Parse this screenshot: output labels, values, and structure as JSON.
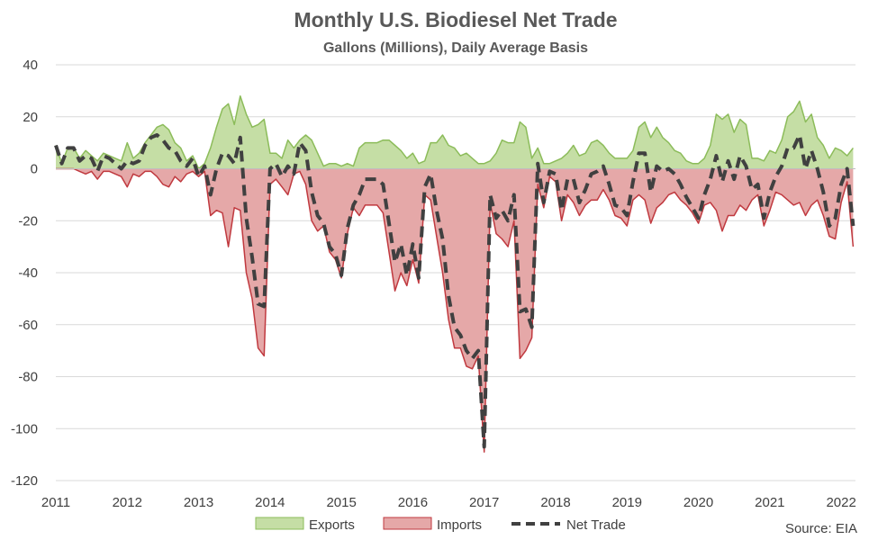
{
  "chart_data": {
    "type": "area",
    "title": "Monthly U.S. Biodiesel Net Trade",
    "subtitle": "Gallons (Millions), Daily Average Basis",
    "source": "Source: EIA",
    "ylim": [
      -120,
      40
    ],
    "yticks": [
      40,
      20,
      0,
      -20,
      -40,
      -60,
      -80,
      -100,
      -120
    ],
    "xticks": [
      2011,
      2012,
      2013,
      2014,
      2015,
      2016,
      2017,
      2018,
      2019,
      2020,
      2021,
      2022
    ],
    "xlim": [
      2011.0,
      2022.2
    ],
    "grid": true,
    "legend_position": "bottom",
    "x": [
      2011.0,
      2011.083,
      2011.167,
      2011.25,
      2011.333,
      2011.417,
      2011.5,
      2011.583,
      2011.667,
      2011.75,
      2011.833,
      2011.917,
      2012.0,
      2012.083,
      2012.167,
      2012.25,
      2012.333,
      2012.417,
      2012.5,
      2012.583,
      2012.667,
      2012.75,
      2012.833,
      2012.917,
      2013.0,
      2013.083,
      2013.167,
      2013.25,
      2013.333,
      2013.417,
      2013.5,
      2013.583,
      2013.667,
      2013.75,
      2013.833,
      2013.917,
      2014.0,
      2014.083,
      2014.167,
      2014.25,
      2014.333,
      2014.417,
      2014.5,
      2014.583,
      2014.667,
      2014.75,
      2014.833,
      2014.917,
      2015.0,
      2015.083,
      2015.167,
      2015.25,
      2015.333,
      2015.417,
      2015.5,
      2015.583,
      2015.667,
      2015.75,
      2015.833,
      2015.917,
      2016.0,
      2016.083,
      2016.167,
      2016.25,
      2016.333,
      2016.417,
      2016.5,
      2016.583,
      2016.667,
      2016.75,
      2016.833,
      2016.917,
      2017.0,
      2017.083,
      2017.167,
      2017.25,
      2017.333,
      2017.417,
      2017.5,
      2017.583,
      2017.667,
      2017.75,
      2017.833,
      2017.917,
      2018.0,
      2018.083,
      2018.167,
      2018.25,
      2018.333,
      2018.417,
      2018.5,
      2018.583,
      2018.667,
      2018.75,
      2018.833,
      2018.917,
      2019.0,
      2019.083,
      2019.167,
      2019.25,
      2019.333,
      2019.417,
      2019.5,
      2019.583,
      2019.667,
      2019.75,
      2019.833,
      2019.917,
      2020.0,
      2020.083,
      2020.167,
      2020.25,
      2020.333,
      2020.417,
      2020.5,
      2020.583,
      2020.667,
      2020.75,
      2020.833,
      2020.917,
      2021.0,
      2021.083,
      2021.167,
      2021.25,
      2021.333,
      2021.417,
      2021.5,
      2021.583,
      2021.667,
      2021.75,
      2021.833,
      2021.917,
      2022.0,
      2022.083,
      2022.167
    ],
    "series": [
      {
        "name": "Exports",
        "color": "#c5dea5",
        "stroke": "#8cbc5a",
        "values": [
          9,
          2,
          8,
          8,
          4,
          7,
          5,
          3,
          6,
          5,
          4,
          3,
          10,
          4,
          6,
          10,
          13,
          16,
          17,
          15,
          10,
          8,
          3,
          5,
          0,
          2,
          8,
          16,
          23,
          25,
          17,
          28,
          21,
          16,
          17,
          19,
          6,
          6,
          4,
          11,
          8,
          11,
          13,
          11,
          6,
          1,
          2,
          2,
          1,
          2,
          1,
          8,
          10,
          10,
          10,
          11,
          11,
          9,
          7,
          4,
          6,
          2,
          3,
          10,
          10,
          13,
          9,
          8,
          5,
          6,
          4,
          2,
          2,
          3,
          6,
          11,
          10,
          10,
          18,
          16,
          4,
          8,
          2,
          2,
          3,
          4,
          6,
          9,
          5,
          6,
          10,
          11,
          9,
          6,
          4,
          4,
          4,
          7,
          16,
          18,
          12,
          16,
          12,
          10,
          7,
          6,
          3,
          2,
          2,
          4,
          9,
          21,
          19,
          21,
          14,
          19,
          17,
          4,
          4,
          3,
          7,
          6,
          11,
          20,
          22,
          26,
          18,
          21,
          12,
          9,
          4,
          8,
          7,
          5,
          8
        ]
      },
      {
        "name": "Imports",
        "color": "#e5a8a8",
        "stroke": "#c0393f",
        "values": [
          0,
          0,
          0,
          0,
          -1,
          -2,
          -1,
          -4,
          -1,
          -1,
          -2,
          -3,
          -7,
          -2,
          -3,
          -1,
          -1,
          -3,
          -6,
          -7,
          -3,
          -5,
          -2,
          -1,
          -3,
          -1,
          -18,
          -16,
          -17,
          -30,
          -15,
          -16,
          -40,
          -50,
          -69,
          -72,
          -6,
          -4,
          -7,
          -10,
          -2,
          -1,
          -6,
          -20,
          -24,
          -22,
          -32,
          -35,
          -42,
          -25,
          -15,
          -18,
          -14,
          -14,
          -14,
          -17,
          -32,
          -47,
          -40,
          -45,
          -35,
          -44,
          -10,
          -12,
          -26,
          -40,
          -58,
          -69,
          -69,
          -76,
          -77,
          -72,
          -109,
          -13,
          -25,
          -27,
          -30,
          -20,
          -73,
          -70,
          -65,
          -6,
          -15,
          -3,
          -5,
          -20,
          -10,
          -13,
          -18,
          -14,
          -12,
          -12,
          -8,
          -12,
          -18,
          -19,
          -22,
          -12,
          -10,
          -12,
          -21,
          -15,
          -13,
          -10,
          -9,
          -12,
          -14,
          -17,
          -21,
          -14,
          -13,
          -16,
          -24,
          -18,
          -18,
          -14,
          -16,
          -12,
          -10,
          -22,
          -16,
          -9,
          -10,
          -12,
          -14,
          -13,
          -18,
          -14,
          -12,
          -18,
          -26,
          -27,
          -13,
          -5,
          -30
        ]
      },
      {
        "name": "Net Trade",
        "color": "#404040",
        "values": [
          9,
          2,
          8,
          8,
          3,
          5,
          4,
          -1,
          5,
          4,
          2,
          0,
          3,
          2,
          3,
          9,
          12,
          13,
          11,
          8,
          7,
          3,
          1,
          4,
          -3,
          1,
          -10,
          0,
          6,
          5,
          2,
          12,
          -19,
          -34,
          -52,
          -53,
          0,
          2,
          -3,
          1,
          -2,
          10,
          7,
          -9,
          -18,
          -21,
          -30,
          -33,
          -41,
          -23,
          -14,
          -10,
          -4,
          -4,
          -4,
          -6,
          -21,
          -36,
          -29,
          -41,
          -29,
          -42,
          -7,
          -2,
          -16,
          -27,
          -49,
          -61,
          -64,
          -70,
          -73,
          -70,
          -107,
          -10,
          -19,
          -16,
          -20,
          -10,
          -55,
          -54,
          -61,
          2,
          -13,
          -1,
          -2,
          -16,
          -4,
          -4,
          -13,
          -8,
          -2,
          -1,
          1,
          -6,
          -14,
          -15,
          -18,
          -5,
          6,
          6,
          -9,
          1,
          -1,
          0,
          -2,
          -6,
          -11,
          -15,
          -19,
          -10,
          -4,
          5,
          -5,
          3,
          -4,
          5,
          1,
          -8,
          -6,
          -19,
          -9,
          -3,
          1,
          8,
          8,
          13,
          0,
          7,
          0,
          -9,
          -22,
          -19,
          -6,
          0,
          -22
        ]
      }
    ]
  }
}
